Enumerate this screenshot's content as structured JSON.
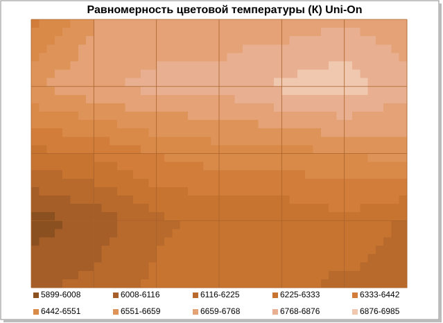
{
  "chart_data": {
    "type": "contour",
    "title": "Равномерность цветовой температуры (К) Uni-On",
    "z": [
      [
        6400,
        6650,
        6700,
        6720,
        6700,
        6750,
        6700
      ],
      [
        6650,
        6750,
        6800,
        6800,
        6900,
        6950,
        6800
      ],
      [
        6300,
        6350,
        6450,
        6500,
        6500,
        6550,
        6600
      ],
      [
        5950,
        6050,
        6200,
        6250,
        6250,
        6300,
        6200
      ],
      [
        6100,
        6150,
        6250,
        6300,
        6250,
        6200,
        6200
      ]
    ],
    "bands": [
      {
        "name": "5899-6008",
        "color": "#8b5020",
        "min": 5899,
        "max": 6008
      },
      {
        "name": "6008-6116",
        "color": "#a55e28",
        "min": 6008,
        "max": 6116
      },
      {
        "name": "6116-6225",
        "color": "#b8692c",
        "min": 6116,
        "max": 6225
      },
      {
        "name": "6225-6333",
        "color": "#c87431",
        "min": 6225,
        "max": 6333
      },
      {
        "name": "6333-6442",
        "color": "#d27e3a",
        "min": 6333,
        "max": 6442
      },
      {
        "name": "6442-6551",
        "color": "#da8a48",
        "min": 6442,
        "max": 6551
      },
      {
        "name": "6551-6659",
        "color": "#de9458",
        "min": 6551,
        "max": 6659
      },
      {
        "name": "6659-6768",
        "color": "#e4a276",
        "min": 6659,
        "max": 6768
      },
      {
        "name": "6768-6876",
        "color": "#e8b090",
        "min": 6768,
        "max": 6876
      },
      {
        "name": "6876-6985",
        "color": "#f0c8b0",
        "min": 6876,
        "max": 6985
      }
    ]
  }
}
